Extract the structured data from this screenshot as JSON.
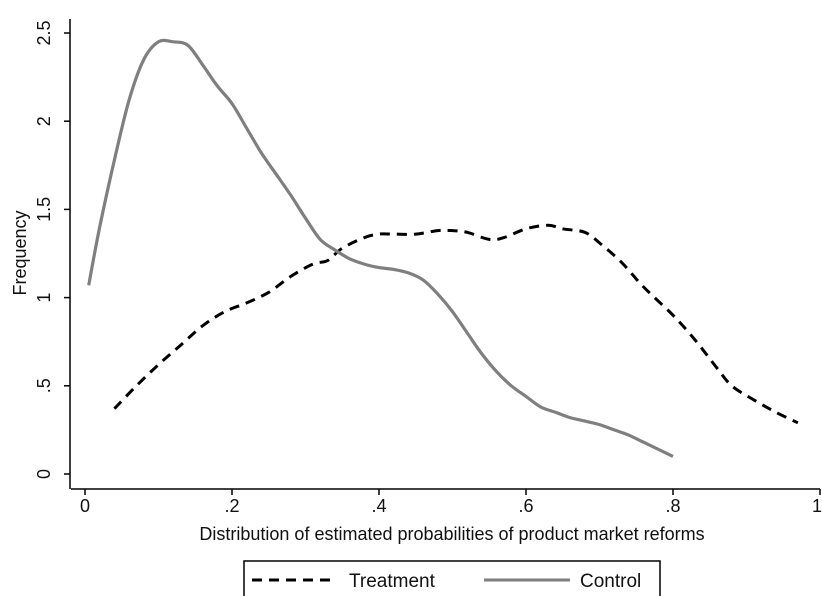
{
  "chart_data": {
    "type": "line",
    "title": "",
    "xlabel": "Distribution of estimated probabilities of product market reforms",
    "ylabel": "Frequency",
    "xlim": [
      0,
      1
    ],
    "ylim": [
      0,
      2.5
    ],
    "xticks": [
      0,
      0.2,
      0.4,
      0.6,
      0.8,
      1
    ],
    "xtick_labels": [
      "0",
      ".2",
      ".4",
      ".6",
      ".8",
      "1"
    ],
    "yticks": [
      0,
      0.5,
      1,
      1.5,
      2,
      2.5
    ],
    "ytick_labels": [
      "0",
      ".5",
      "1",
      "1.5",
      "2",
      "2.5"
    ],
    "grid": false,
    "legend_position": "bottom",
    "series": [
      {
        "name": "Treatment",
        "style": "dashed",
        "color": "#000000",
        "x": [
          0.04,
          0.07,
          0.1,
          0.13,
          0.16,
          0.19,
          0.22,
          0.25,
          0.28,
          0.31,
          0.33,
          0.35,
          0.38,
          0.4,
          0.42,
          0.45,
          0.48,
          0.5,
          0.52,
          0.55,
          0.57,
          0.6,
          0.63,
          0.65,
          0.68,
          0.7,
          0.73,
          0.76,
          0.8,
          0.83,
          0.86,
          0.88,
          0.91,
          0.94,
          0.97
        ],
        "y": [
          0.37,
          0.5,
          0.62,
          0.73,
          0.84,
          0.92,
          0.97,
          1.03,
          1.12,
          1.19,
          1.21,
          1.28,
          1.34,
          1.36,
          1.36,
          1.36,
          1.38,
          1.38,
          1.37,
          1.33,
          1.34,
          1.39,
          1.41,
          1.39,
          1.37,
          1.31,
          1.2,
          1.06,
          0.9,
          0.76,
          0.6,
          0.5,
          0.42,
          0.35,
          0.29
        ]
      },
      {
        "name": "Control",
        "style": "solid",
        "color": "#7f7f7f",
        "x": [
          0.005,
          0.02,
          0.04,
          0.06,
          0.08,
          0.1,
          0.12,
          0.14,
          0.16,
          0.18,
          0.2,
          0.22,
          0.24,
          0.26,
          0.28,
          0.3,
          0.32,
          0.34,
          0.36,
          0.38,
          0.4,
          0.42,
          0.44,
          0.46,
          0.48,
          0.5,
          0.52,
          0.54,
          0.56,
          0.58,
          0.6,
          0.62,
          0.64,
          0.66,
          0.68,
          0.7,
          0.72,
          0.74,
          0.76,
          0.78,
          0.8
        ],
        "y": [
          1.07,
          1.4,
          1.78,
          2.12,
          2.35,
          2.45,
          2.45,
          2.43,
          2.32,
          2.2,
          2.1,
          1.96,
          1.82,
          1.7,
          1.58,
          1.45,
          1.33,
          1.27,
          1.22,
          1.19,
          1.17,
          1.16,
          1.14,
          1.1,
          1.02,
          0.92,
          0.8,
          0.68,
          0.58,
          0.5,
          0.44,
          0.38,
          0.35,
          0.32,
          0.3,
          0.28,
          0.25,
          0.22,
          0.18,
          0.14,
          0.1
        ]
      }
    ]
  }
}
